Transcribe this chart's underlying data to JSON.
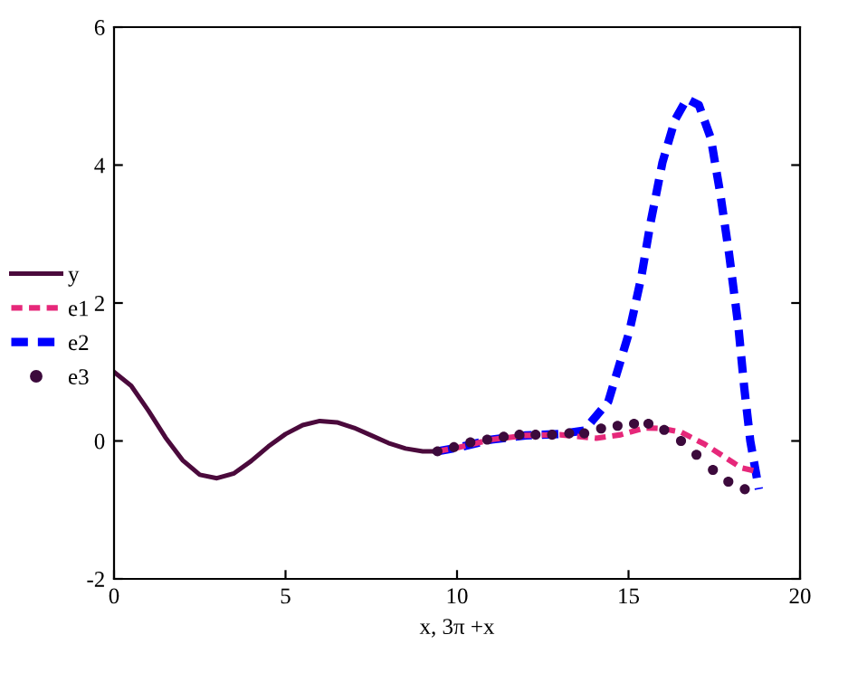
{
  "chart_data": {
    "type": "line",
    "xlabel": "x, 3π +x",
    "xlim": [
      0,
      20
    ],
    "ylim": [
      -2,
      6
    ],
    "xticks": [
      0,
      5,
      10,
      15,
      20
    ],
    "yticks": [
      -2,
      0,
      2,
      4,
      6
    ],
    "grid": false,
    "legend": "left",
    "series": [
      {
        "name": "y",
        "color": "#4b0a3c",
        "line_style": "solid",
        "x": [
          0,
          0.5,
          1,
          1.5,
          2,
          2.5,
          3,
          3.5,
          4,
          4.5,
          5,
          5.5,
          6,
          6.5,
          7,
          7.5,
          8,
          8.5,
          9,
          9.42
        ],
        "values": [
          1,
          0.8,
          0.44,
          0.05,
          -0.28,
          -0.49,
          -0.54,
          -0.47,
          -0.29,
          -0.08,
          0.1,
          0.23,
          0.29,
          0.27,
          0.19,
          0.08,
          -0.03,
          -0.11,
          -0.15,
          -0.15
        ]
      },
      {
        "name": "e1",
        "color": "#e6287a",
        "line_style": "dashed",
        "x": [
          9.42,
          10,
          11,
          12,
          13,
          14.06,
          14.77,
          15.48,
          15.99,
          16.52,
          17.23,
          17.76,
          18.29,
          18.73
        ],
        "values": [
          -0.15,
          -0.1,
          0.02,
          0.08,
          0.09,
          0.04,
          0.09,
          0.19,
          0.18,
          0.13,
          -0.05,
          -0.22,
          -0.39,
          -0.44
        ]
      },
      {
        "name": "e2",
        "color": "#0000ff",
        "line_style": "dashed",
        "x": [
          9.42,
          10,
          11,
          12,
          13,
          13.7,
          14.41,
          15.02,
          15.37,
          15.64,
          15.99,
          16.35,
          16.7,
          17.05,
          17.4,
          17.67,
          17.93,
          18.2,
          18.37,
          18.55,
          18.8
        ],
        "values": [
          -0.15,
          -0.1,
          0.02,
          0.08,
          0.1,
          0.15,
          0.57,
          1.58,
          2.37,
          3.16,
          4.04,
          4.65,
          4.96,
          4.87,
          4.39,
          3.6,
          2.72,
          1.67,
          0.79,
          0,
          -0.7
        ]
      },
      {
        "name": "e3",
        "type": "scatter",
        "color": "#3c0a3c",
        "marker": "circle",
        "x": [
          9.43,
          9.91,
          10.39,
          10.88,
          11.36,
          11.82,
          12.29,
          12.77,
          13.27,
          13.71,
          14.2,
          14.68,
          15.16,
          15.58,
          16.04,
          16.53,
          16.98,
          17.46,
          17.91,
          18.39
        ],
        "values": [
          -0.15,
          -0.09,
          -0.02,
          0.02,
          0.06,
          0.09,
          0.09,
          0.09,
          0.11,
          0.11,
          0.18,
          0.22,
          0.25,
          0.25,
          0.16,
          0,
          -0.2,
          -0.42,
          -0.59,
          -0.7
        ]
      }
    ]
  }
}
